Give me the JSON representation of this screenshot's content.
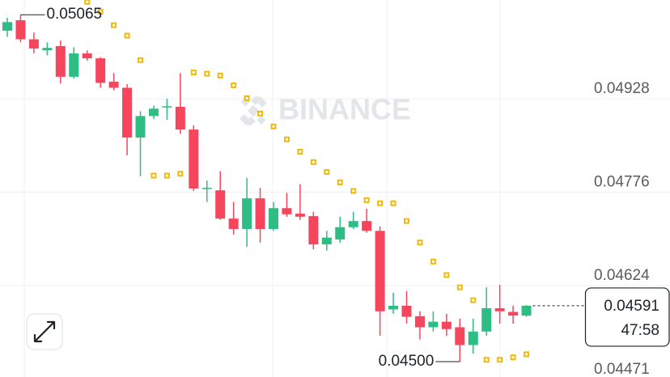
{
  "chart_data": {
    "type": "candlestick",
    "watermark": "BINANCE",
    "open": [
      0.05039,
      0.05056,
      0.05025,
      0.05007,
      0.05014,
      0.04964,
      0.05002,
      0.04994,
      0.04956,
      0.04946,
      0.04865,
      0.049,
      0.04914,
      0.04915,
      0.04878,
      0.04781,
      0.04779,
      0.04733,
      0.04716,
      0.04766,
      0.04716,
      0.0475,
      0.04741,
      0.04737,
      0.04691,
      0.04699,
      0.04719,
      0.04729,
      0.04713,
      0.04585,
      0.04591,
      0.04574,
      0.04556,
      0.04565,
      0.04556,
      0.04527,
      0.04549,
      0.04587,
      0.04581,
      0.04575
    ],
    "high": [
      0.0506,
      0.05065,
      0.05036,
      0.0502,
      0.05023,
      0.05012,
      0.05007,
      0.04996,
      0.0497,
      0.04952,
      0.04908,
      0.04917,
      0.04928,
      0.0497,
      0.04885,
      0.04795,
      0.0481,
      0.0476,
      0.04799,
      0.04783,
      0.0476,
      0.04775,
      0.04789,
      0.04744,
      0.04713,
      0.04736,
      0.04744,
      0.04749,
      0.0472,
      0.04612,
      0.04615,
      0.04582,
      0.04582,
      0.04578,
      0.0457,
      0.0457,
      0.04621,
      0.04625,
      0.04591,
      0.04592
    ],
    "low": [
      0.05029,
      0.0502,
      0.05002,
      0.04999,
      0.04953,
      0.04961,
      0.0499,
      0.04946,
      0.04942,
      0.04836,
      0.04802,
      0.04895,
      0.04894,
      0.04871,
      0.04778,
      0.0476,
      0.04731,
      0.04707,
      0.04687,
      0.04694,
      0.04713,
      0.04736,
      0.04731,
      0.04683,
      0.04681,
      0.04694,
      0.04716,
      0.0471,
      0.04542,
      0.04578,
      0.04562,
      0.04536,
      0.04549,
      0.04542,
      0.045,
      0.04513,
      0.04542,
      0.04562,
      0.04562,
      0.04573
    ],
    "close": [
      0.05053,
      0.05025,
      0.0501,
      0.05011,
      0.04964,
      0.05002,
      0.04994,
      0.04954,
      0.04946,
      0.04865,
      0.049,
      0.04912,
      0.04916,
      0.04878,
      0.04782,
      0.04783,
      0.04733,
      0.04716,
      0.04766,
      0.04716,
      0.0475,
      0.0474,
      0.04736,
      0.04691,
      0.04702,
      0.04719,
      0.04729,
      0.04713,
      0.04582,
      0.04591,
      0.04573,
      0.04556,
      0.04565,
      0.04553,
      0.04527,
      0.04549,
      0.04587,
      0.04582,
      0.04575,
      0.04591
    ],
    "up_color": "#2ebd85",
    "down_color": "#f6465d",
    "sar": {
      "color": "#f0b90b",
      "values": [
        null,
        null,
        null,
        null,
        null,
        null,
        0.05086,
        0.0507,
        0.05048,
        0.05031,
        0.04991,
        0.04803,
        0.04803,
        0.04806,
        0.04971,
        0.04969,
        0.04966,
        0.0495,
        0.04929,
        0.04904,
        0.04883,
        0.04862,
        0.04842,
        0.04825,
        0.04809,
        0.04792,
        0.04778,
        0.04763,
        0.04758,
        0.04758,
        0.04729,
        0.04694,
        0.04663,
        0.04641,
        0.04621,
        0.046,
        0.04503,
        0.04503,
        0.04507,
        0.04512
      ]
    },
    "ylim": [
      0.04471,
      0.05089
    ],
    "yticks": [
      0.04471,
      0.04624,
      0.04776,
      0.04928
    ],
    "grid": true,
    "high_marker": {
      "value": 0.05065
    },
    "low_marker": {
      "value": 0.045,
      "label": "0.04500"
    },
    "last_price": {
      "value": 0.04591,
      "countdown": "47:58"
    }
  }
}
